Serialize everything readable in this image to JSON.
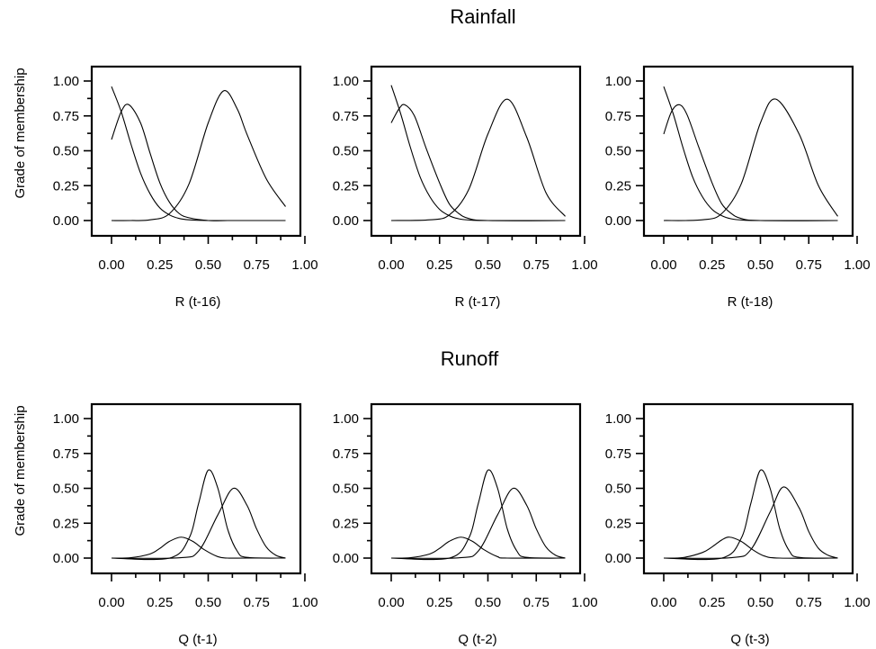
{
  "sections": [
    {
      "title": "Rainfall"
    },
    {
      "title": "Runoff"
    }
  ],
  "chart_data": [
    {
      "type": "line",
      "section": "Rainfall",
      "xlabel": "R (t-16)",
      "ylabel": "Grade of membership",
      "xlim": [
        0,
        1
      ],
      "ylim": [
        0,
        1
      ],
      "xticks": [
        "0.00",
        "0.25",
        "0.50",
        "0.75",
        "1.00"
      ],
      "yticks": [
        "0.00",
        "0.25",
        "0.50",
        "0.75",
        "1.00"
      ],
      "series": [
        {
          "x": [
            0,
            0.05,
            0.1,
            0.15,
            0.2,
            0.25,
            0.3,
            0.35,
            0.4,
            0.5,
            0.6,
            0.9
          ],
          "y": [
            0.96,
            0.78,
            0.55,
            0.34,
            0.19,
            0.09,
            0.04,
            0.015,
            0.005,
            0.0,
            0.0,
            0.0
          ]
        },
        {
          "x": [
            0,
            0.05,
            0.09,
            0.15,
            0.2,
            0.25,
            0.3,
            0.35,
            0.4,
            0.5,
            0.6,
            0.9
          ],
          "y": [
            0.58,
            0.78,
            0.83,
            0.7,
            0.48,
            0.27,
            0.13,
            0.05,
            0.02,
            0.0,
            0.0,
            0.0
          ]
        },
        {
          "x": [
            0,
            0.1,
            0.2,
            0.3,
            0.4,
            0.5,
            0.58,
            0.65,
            0.7,
            0.8,
            0.9
          ],
          "y": [
            0.0,
            0.0,
            0.005,
            0.05,
            0.26,
            0.7,
            0.93,
            0.8,
            0.62,
            0.3,
            0.1
          ]
        }
      ]
    },
    {
      "type": "line",
      "section": "Rainfall",
      "xlabel": "R (t-17)",
      "ylabel": "",
      "xlim": [
        0,
        1
      ],
      "ylim": [
        0,
        1
      ],
      "xticks": [
        "0.00",
        "0.25",
        "0.50",
        "0.75",
        "1.00"
      ],
      "yticks": [
        "0.00",
        "0.25",
        "0.50",
        "0.75",
        "1.00"
      ],
      "series": [
        {
          "x": [
            0,
            0.05,
            0.1,
            0.15,
            0.2,
            0.25,
            0.3,
            0.35,
            0.4,
            0.5,
            0.9
          ],
          "y": [
            0.97,
            0.76,
            0.52,
            0.31,
            0.17,
            0.08,
            0.035,
            0.012,
            0.004,
            0.0,
            0.0
          ]
        },
        {
          "x": [
            0,
            0.04,
            0.07,
            0.12,
            0.18,
            0.25,
            0.3,
            0.35,
            0.4,
            0.5,
            0.9
          ],
          "y": [
            0.7,
            0.8,
            0.83,
            0.75,
            0.52,
            0.27,
            0.12,
            0.05,
            0.015,
            0.0,
            0.0
          ]
        },
        {
          "x": [
            0,
            0.2,
            0.3,
            0.4,
            0.5,
            0.6,
            0.7,
            0.8,
            0.9
          ],
          "y": [
            0.0,
            0.005,
            0.04,
            0.22,
            0.62,
            0.87,
            0.6,
            0.2,
            0.03
          ]
        }
      ]
    },
    {
      "type": "line",
      "section": "Rainfall",
      "xlabel": "R (t-18)",
      "ylabel": "",
      "xlim": [
        0,
        1
      ],
      "ylim": [
        0,
        1
      ],
      "xticks": [
        "0.00",
        "0.25",
        "0.50",
        "0.75",
        "1.00"
      ],
      "yticks": [
        "0.00",
        "0.25",
        "0.50",
        "0.75",
        "1.00"
      ],
      "series": [
        {
          "x": [
            0,
            0.05,
            0.1,
            0.15,
            0.2,
            0.25,
            0.3,
            0.35,
            0.4,
            0.5,
            0.9
          ],
          "y": [
            0.96,
            0.76,
            0.52,
            0.31,
            0.17,
            0.08,
            0.035,
            0.012,
            0.004,
            0.0,
            0.0
          ]
        },
        {
          "x": [
            0,
            0.04,
            0.08,
            0.12,
            0.18,
            0.25,
            0.3,
            0.35,
            0.4,
            0.5,
            0.9
          ],
          "y": [
            0.62,
            0.78,
            0.83,
            0.76,
            0.53,
            0.27,
            0.12,
            0.05,
            0.015,
            0.0,
            0.0
          ]
        },
        {
          "x": [
            0,
            0.2,
            0.3,
            0.4,
            0.5,
            0.58,
            0.7,
            0.8,
            0.9
          ],
          "y": [
            0.0,
            0.005,
            0.05,
            0.26,
            0.7,
            0.87,
            0.62,
            0.25,
            0.03
          ]
        }
      ]
    },
    {
      "type": "line",
      "section": "Runoff",
      "xlabel": "Q (t-1)",
      "ylabel": "Grade of membership",
      "xlim": [
        0,
        1
      ],
      "ylim": [
        0,
        1
      ],
      "xticks": [
        "0.00",
        "0.25",
        "0.50",
        "0.75",
        "1.00"
      ],
      "yticks": [
        "0.00",
        "0.25",
        "0.50",
        "0.75",
        "1.00"
      ],
      "series": [
        {
          "x": [
            0,
            0.1,
            0.2,
            0.25,
            0.3,
            0.36,
            0.42,
            0.48,
            0.55,
            0.6,
            0.7,
            0.9
          ],
          "y": [
            0.0,
            0.003,
            0.03,
            0.07,
            0.12,
            0.15,
            0.12,
            0.06,
            0.01,
            0.0,
            0.0,
            0.0
          ]
        },
        {
          "x": [
            0,
            0.3,
            0.4,
            0.45,
            0.5,
            0.55,
            0.6,
            0.65,
            0.7,
            0.9
          ],
          "y": [
            0.0,
            0.0,
            0.14,
            0.39,
            0.63,
            0.5,
            0.21,
            0.05,
            0.005,
            0.0
          ]
        },
        {
          "x": [
            0,
            0.35,
            0.45,
            0.55,
            0.63,
            0.7,
            0.75,
            0.8,
            0.85,
            0.9
          ],
          "y": [
            0.0,
            0.002,
            0.05,
            0.31,
            0.5,
            0.38,
            0.21,
            0.08,
            0.02,
            0.0
          ]
        }
      ]
    },
    {
      "type": "line",
      "section": "Runoff",
      "xlabel": "Q (t-2)",
      "ylabel": "",
      "xlim": [
        0,
        1
      ],
      "ylim": [
        0,
        1
      ],
      "xticks": [
        "0.00",
        "0.25",
        "0.50",
        "0.75",
        "1.00"
      ],
      "yticks": [
        "0.00",
        "0.25",
        "0.50",
        "0.75",
        "1.00"
      ],
      "series": [
        {
          "x": [
            0,
            0.1,
            0.2,
            0.25,
            0.3,
            0.36,
            0.42,
            0.48,
            0.55,
            0.6,
            0.9
          ],
          "y": [
            0.0,
            0.003,
            0.03,
            0.07,
            0.12,
            0.15,
            0.12,
            0.06,
            0.01,
            0.0,
            0.0
          ]
        },
        {
          "x": [
            0,
            0.3,
            0.4,
            0.45,
            0.5,
            0.55,
            0.6,
            0.65,
            0.7,
            0.9
          ],
          "y": [
            0.0,
            0.0,
            0.14,
            0.39,
            0.63,
            0.5,
            0.21,
            0.05,
            0.005,
            0.0
          ]
        },
        {
          "x": [
            0,
            0.35,
            0.45,
            0.55,
            0.63,
            0.7,
            0.75,
            0.8,
            0.85,
            0.9
          ],
          "y": [
            0.0,
            0.002,
            0.05,
            0.31,
            0.5,
            0.38,
            0.21,
            0.08,
            0.02,
            0.0
          ]
        }
      ]
    },
    {
      "type": "line",
      "section": "Runoff",
      "xlabel": "Q (t-3)",
      "ylabel": "",
      "xlim": [
        0,
        1
      ],
      "ylim": [
        0,
        1
      ],
      "xticks": [
        "0.00",
        "0.25",
        "0.50",
        "0.75",
        "1.00"
      ],
      "yticks": [
        "0.00",
        "0.25",
        "0.50",
        "0.75",
        "1.00"
      ],
      "series": [
        {
          "x": [
            0,
            0.1,
            0.2,
            0.25,
            0.3,
            0.34,
            0.4,
            0.46,
            0.52,
            0.6,
            0.9
          ],
          "y": [
            0.0,
            0.004,
            0.04,
            0.08,
            0.13,
            0.15,
            0.12,
            0.06,
            0.015,
            0.0,
            0.0
          ]
        },
        {
          "x": [
            0,
            0.3,
            0.4,
            0.45,
            0.5,
            0.55,
            0.6,
            0.65,
            0.7,
            0.9
          ],
          "y": [
            0.0,
            0.0,
            0.14,
            0.39,
            0.63,
            0.5,
            0.21,
            0.05,
            0.005,
            0.0
          ]
        },
        {
          "x": [
            0,
            0.35,
            0.45,
            0.55,
            0.62,
            0.7,
            0.75,
            0.8,
            0.85,
            0.9
          ],
          "y": [
            0.0,
            0.003,
            0.06,
            0.33,
            0.51,
            0.36,
            0.19,
            0.07,
            0.02,
            0.0
          ]
        }
      ]
    }
  ]
}
